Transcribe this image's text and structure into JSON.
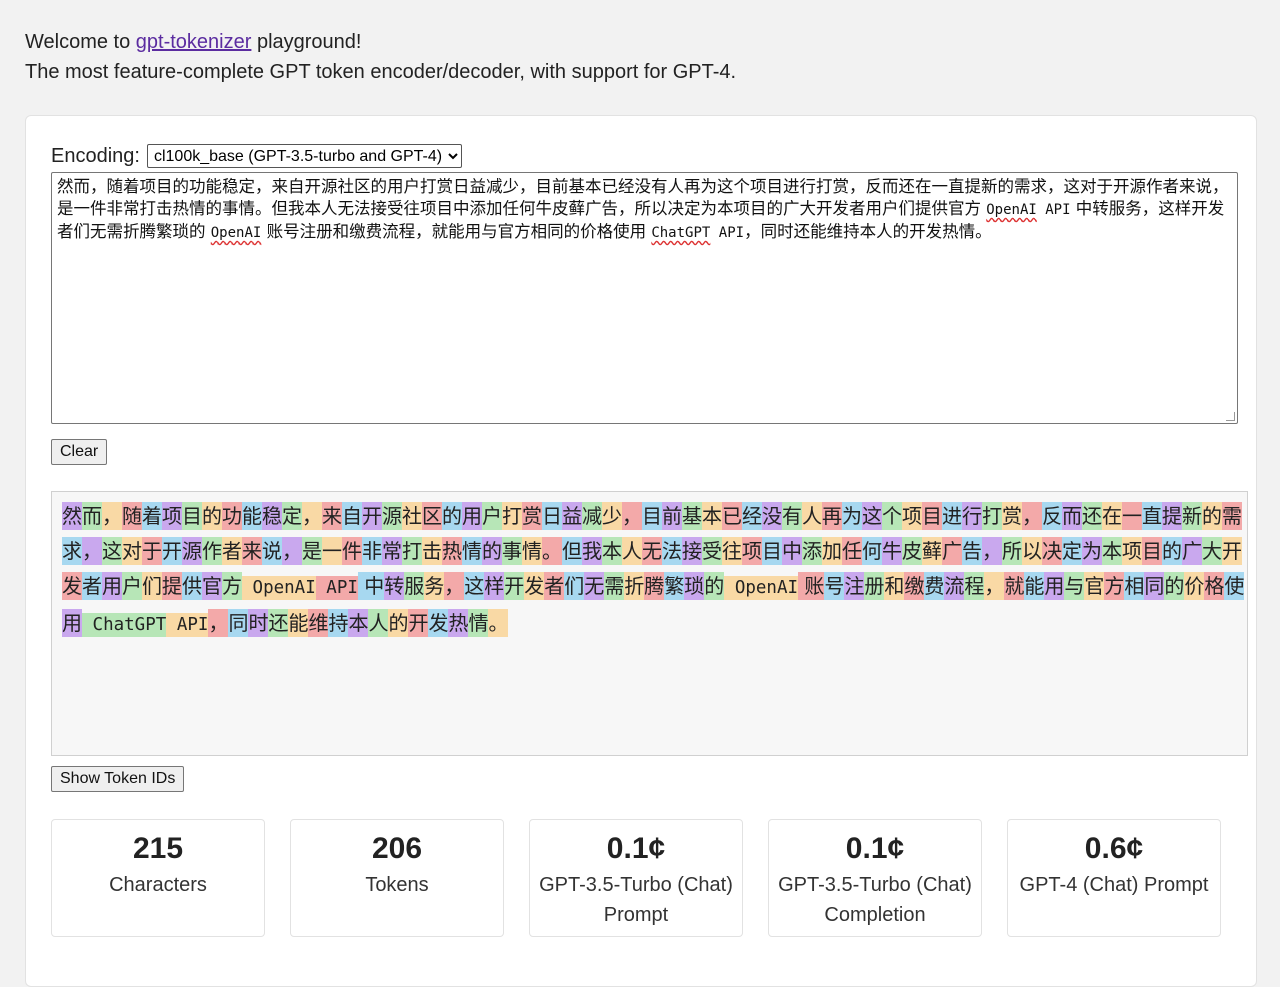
{
  "intro": {
    "welcome_prefix": "Welcome to ",
    "link_text": "gpt-tokenizer",
    "welcome_suffix": " playground!",
    "tagline": "The most feature-complete GPT token encoder/decoder, with support for GPT-4."
  },
  "encoding": {
    "label": "Encoding:",
    "selected": "cl100k_base (GPT-3.5-turbo and GPT-4)"
  },
  "input": {
    "segments": [
      {
        "t": "然而，随着项目的功能稳定，来自开源社区的用户打赏日益减少，目前基本已经没有人再为这个项目进行打赏，反而还在一直提新的需求，这对于开源作者来说，是一件非常打击热情的事情。但我本人无法接受往项目中添加任何牛皮藓广告，所以决定为本项目的广大开发者用户们提供官方 ",
        "c": ""
      },
      {
        "t": "OpenAI",
        "c": "mono squig"
      },
      {
        "t": " API",
        "c": "mono"
      },
      {
        "t": " 中转服务，这样开发者们无需折腾繁琐的 ",
        "c": ""
      },
      {
        "t": "OpenAI",
        "c": "mono squig"
      },
      {
        "t": " 账号注册和缴费流程，就能用与官方相同的价格使用 ",
        "c": ""
      },
      {
        "t": "ChatGPT",
        "c": "mono squig"
      },
      {
        "t": " API",
        "c": "mono"
      },
      {
        "t": "，同时还能维持本人的开发热情。",
        "c": ""
      }
    ]
  },
  "buttons": {
    "clear": "Clear",
    "show_token_ids": "Show Token IDs"
  },
  "tokens": [
    "然",
    "而",
    "，",
    "随",
    "着",
    "项",
    "目",
    "的",
    "功",
    "能",
    "稳",
    "定",
    "，",
    "来",
    "自",
    "开",
    "源",
    "社",
    "区",
    "的",
    "用",
    "户",
    "打",
    "赏",
    "日",
    "益",
    "减",
    "少",
    "，",
    "目",
    "前",
    "基",
    "本",
    "已",
    "经",
    "没",
    "有",
    "人",
    "再",
    "为",
    "这",
    "个",
    "项",
    "目",
    "进",
    "行",
    "打",
    "赏",
    "，",
    "反",
    "而",
    "还",
    "在",
    "一",
    "直",
    "提",
    "新",
    "的",
    "需",
    "求",
    "，",
    "这",
    "对",
    "于",
    "开",
    "源",
    "作",
    "者",
    "来",
    "说",
    "，",
    "是",
    "一",
    "件",
    "非",
    "常",
    "打",
    "击",
    "热",
    "情",
    "的",
    "事",
    "情",
    "。",
    "但",
    "我",
    "本",
    "人",
    "无",
    "法",
    "接",
    "受",
    "往",
    "项",
    "目",
    "中",
    "添",
    "加",
    "任",
    "何",
    "牛",
    "皮",
    "藓",
    "广",
    "告",
    "，",
    "所",
    "以",
    "决",
    "定",
    "为",
    "本",
    "项",
    "目",
    "的",
    "广",
    "大",
    "开",
    "发",
    "者",
    "用",
    "户",
    "们",
    "提",
    "供",
    "官",
    "方",
    " OpenAI",
    " API",
    " 中",
    "转",
    "服",
    "务",
    "，",
    "这",
    "样",
    "开",
    "发",
    "者",
    "们",
    "无",
    "需",
    "折",
    "腾",
    "繁",
    "琐",
    "的",
    " OpenAI",
    " 账",
    "号",
    "注",
    "册",
    "和",
    "缴",
    "费",
    "流",
    "程",
    "，",
    "就",
    "能",
    "用",
    "与",
    "官",
    "方",
    "相",
    "同",
    "的",
    "价",
    "格",
    "使",
    "用",
    " ChatGPT",
    " API",
    "，",
    "同",
    "时",
    "还",
    "能",
    "维",
    "持",
    "本",
    "人",
    "的",
    "开",
    "发",
    "热",
    "情",
    "。"
  ],
  "stats": [
    {
      "value": "215",
      "label": "Characters"
    },
    {
      "value": "206",
      "label": "Tokens"
    },
    {
      "value": "0.1¢",
      "label": "GPT-3.5-Turbo (Chat) Prompt"
    },
    {
      "value": "0.1¢",
      "label": "GPT-3.5-Turbo (Chat) Completion"
    },
    {
      "value": "0.6¢",
      "label": "GPT-4 (Chat) Prompt"
    }
  ]
}
